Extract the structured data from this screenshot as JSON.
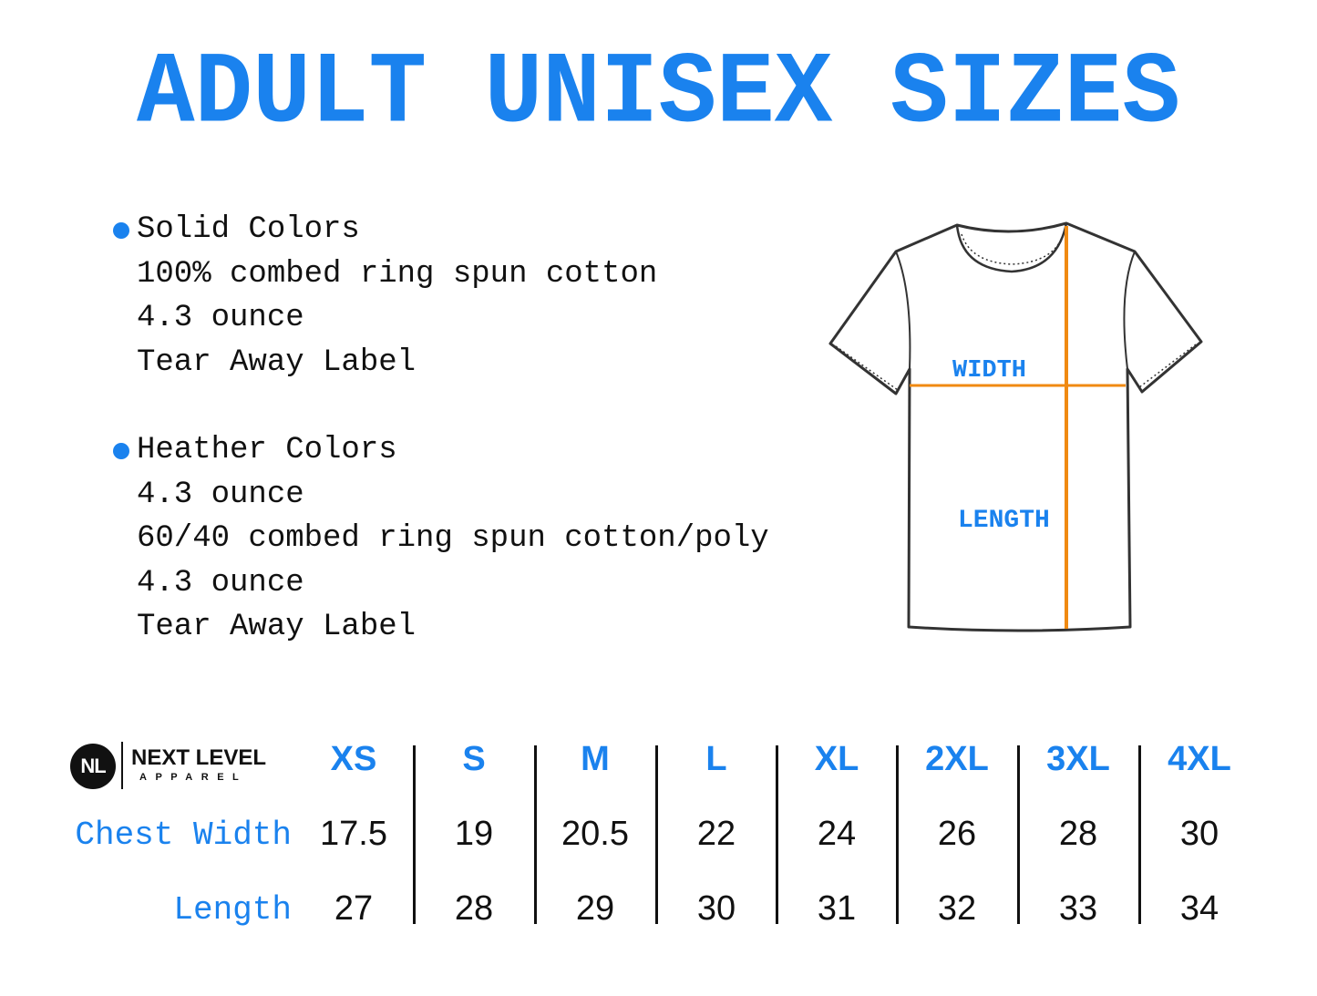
{
  "title": "ADULT UNISEX SIZES",
  "accent_color": "#1a82ee",
  "measure_line_color": "#f08a12",
  "specs": [
    {
      "heading": "Solid Colors",
      "lines": [
        "100% combed ring spun cotton",
        "4.3 ounce",
        "Tear Away Label"
      ]
    },
    {
      "heading": "Heather Colors",
      "lines": [
        "4.3 ounce",
        "60/40 combed ring spun cotton/poly",
        "4.3 ounce",
        "Tear Away Label"
      ]
    }
  ],
  "diagram": {
    "width_label": "WIDTH",
    "length_label": "LENGTH"
  },
  "brand": {
    "mark": "NL",
    "name": "NEXT LEVEL",
    "sub": "APPAREL"
  },
  "table": {
    "row_labels": {
      "chest": "Chest Width",
      "length": "Length"
    },
    "sizes": [
      {
        "size": "XS",
        "chest": "17.5",
        "length": "27"
      },
      {
        "size": "S",
        "chest": "19",
        "length": "28"
      },
      {
        "size": "M",
        "chest": "20.5",
        "length": "29"
      },
      {
        "size": "L",
        "chest": "22",
        "length": "30"
      },
      {
        "size": "XL",
        "chest": "24",
        "length": "31"
      },
      {
        "size": "2XL",
        "chest": "26",
        "length": "32"
      },
      {
        "size": "3XL",
        "chest": "28",
        "length": "33"
      },
      {
        "size": "4XL",
        "chest": "30",
        "length": "34"
      }
    ]
  }
}
